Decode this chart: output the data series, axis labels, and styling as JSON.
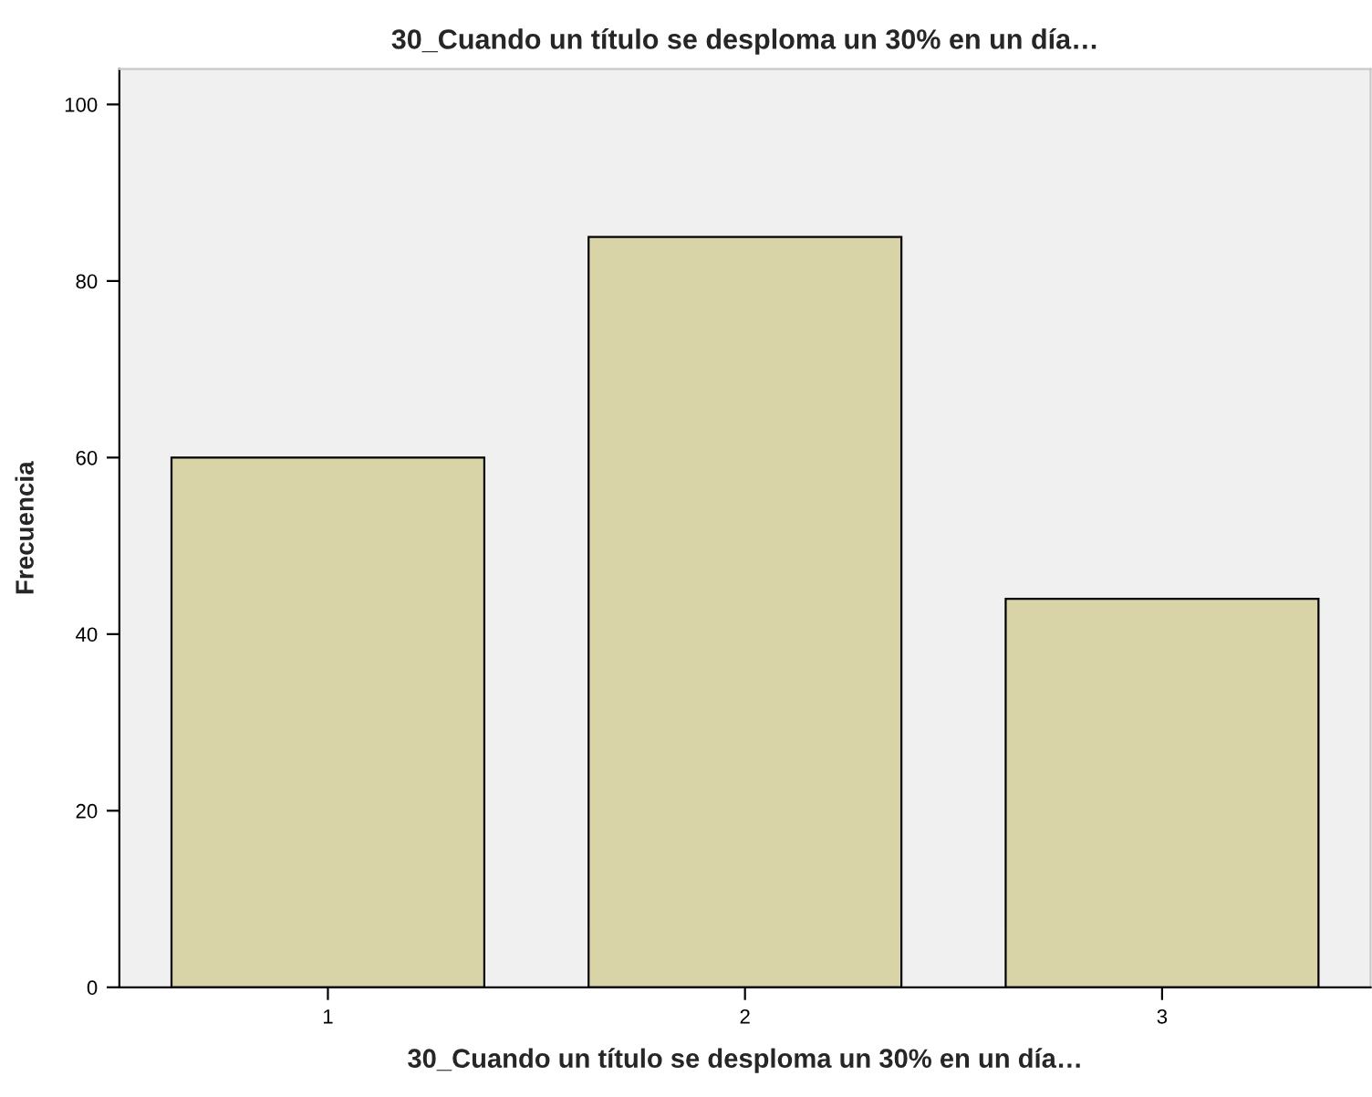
{
  "chart_data": {
    "type": "bar",
    "title": "30_Cuando un título se desploma un 30% en un día…",
    "xlabel": "30_Cuando un título se desploma un 30% en un día…",
    "ylabel": "Frecuencia",
    "categories": [
      "1",
      "2",
      "3"
    ],
    "values": [
      60,
      85,
      44
    ],
    "color": "#d9d4a7",
    "ylim": [
      0,
      104
    ],
    "yticks": [
      0,
      20,
      40,
      60,
      80,
      100
    ],
    "grid": false,
    "legend": false
  }
}
